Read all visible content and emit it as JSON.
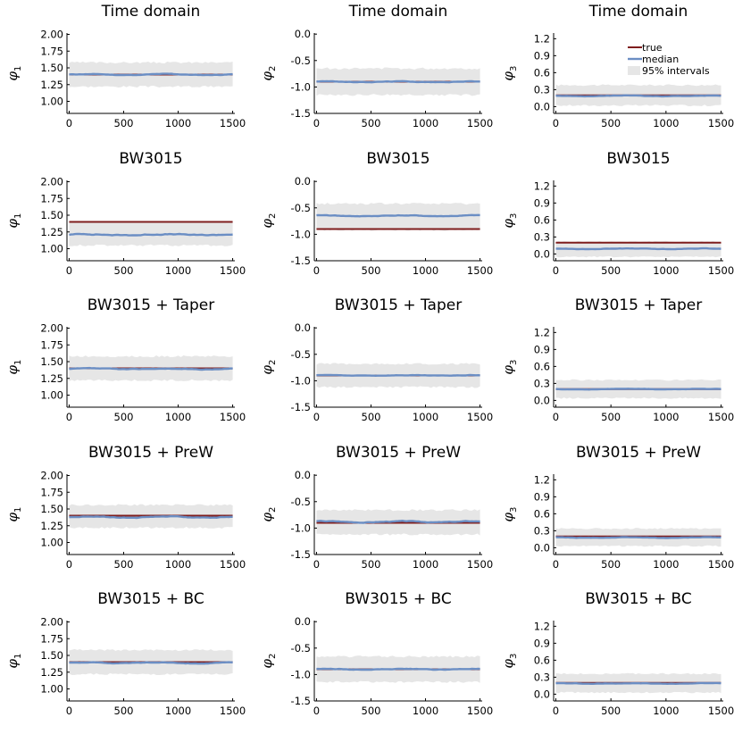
{
  "colors": {
    "true": "#7f1d1d",
    "median": "#6b8ec4",
    "band": "#e6e6e6",
    "axis": "#000000"
  },
  "legend": {
    "true_label": "true",
    "median_label": "median",
    "band_label": "95% intervals",
    "placement": "top-right of panel phi3 (row 1)"
  },
  "chart_data": {
    "type": "line",
    "layout": {
      "rows": 5,
      "cols": 3
    },
    "row_titles": [
      "Time domain",
      "BW3015",
      "BW3015 + Taper",
      "BW3015 + PreW",
      "BW3015 + BC"
    ],
    "x": {
      "range": [
        -20,
        1520
      ],
      "ticks": [
        0,
        500,
        1000,
        1500
      ],
      "tick_labels": [
        "0",
        "500",
        "1000",
        "1500"
      ]
    },
    "params": [
      {
        "ylabel": "φ",
        "sub": "1",
        "ylim": [
          0.82,
          2.02
        ],
        "ticks": [
          1.0,
          1.25,
          1.5,
          1.75,
          2.0
        ],
        "tick_labels": [
          "1.00",
          "1.25",
          "1.50",
          "1.75",
          "2.00"
        ]
      },
      {
        "ylabel": "φ",
        "sub": "2",
        "ylim": [
          -1.5,
          0.02
        ],
        "ticks": [
          -1.5,
          -1.0,
          -0.5,
          0.0
        ],
        "tick_labels": [
          "-1.5",
          "-1.0",
          "-0.5",
          "0.0"
        ]
      },
      {
        "ylabel": "φ",
        "sub": "3",
        "ylim": [
          -0.12,
          1.3
        ],
        "ticks": [
          0.0,
          0.3,
          0.6,
          0.9,
          1.2
        ],
        "tick_labels": [
          "0.0",
          "0.3",
          "0.6",
          "0.9",
          "1.2"
        ]
      }
    ],
    "true_values": [
      1.4,
      -0.9,
      0.2
    ],
    "panels": [
      [
        {
          "median": 1.4,
          "wiggle": 0.012,
          "band": [
            1.22,
            1.58
          ]
        },
        {
          "median": -0.9,
          "wiggle": 0.015,
          "band": [
            -1.15,
            -0.65
          ]
        },
        {
          "median": 0.19,
          "wiggle": 0.01,
          "band": [
            0.02,
            0.38
          ]
        }
      ],
      [
        {
          "median": 1.21,
          "wiggle": 0.018,
          "band": [
            1.05,
            1.4
          ]
        },
        {
          "median": -0.65,
          "wiggle": 0.015,
          "band": [
            -0.92,
            -0.42
          ]
        },
        {
          "median": 0.09,
          "wiggle": 0.01,
          "band": [
            -0.05,
            0.22
          ]
        }
      ],
      [
        {
          "median": 1.39,
          "wiggle": 0.012,
          "band": [
            1.22,
            1.58
          ]
        },
        {
          "median": -0.9,
          "wiggle": 0.012,
          "band": [
            -1.12,
            -0.68
          ]
        },
        {
          "median": 0.2,
          "wiggle": 0.01,
          "band": [
            0.04,
            0.36
          ]
        }
      ],
      [
        {
          "median": 1.38,
          "wiggle": 0.015,
          "band": [
            1.22,
            1.56
          ]
        },
        {
          "median": -0.88,
          "wiggle": 0.018,
          "band": [
            -1.12,
            -0.66
          ]
        },
        {
          "median": 0.18,
          "wiggle": 0.01,
          "band": [
            0.03,
            0.34
          ]
        }
      ],
      [
        {
          "median": 1.39,
          "wiggle": 0.012,
          "band": [
            1.22,
            1.58
          ]
        },
        {
          "median": -0.9,
          "wiggle": 0.015,
          "band": [
            -1.14,
            -0.66
          ]
        },
        {
          "median": 0.19,
          "wiggle": 0.01,
          "band": [
            0.03,
            0.36
          ]
        }
      ]
    ]
  }
}
